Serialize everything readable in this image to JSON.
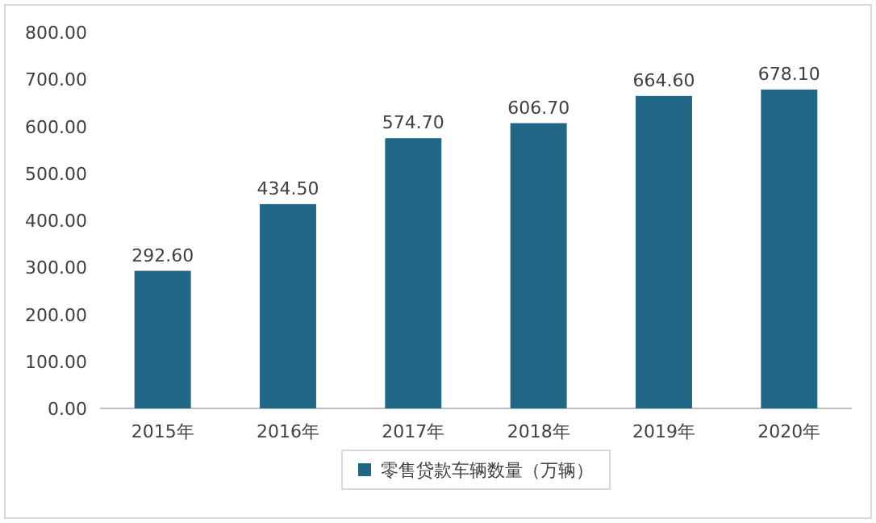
{
  "chart_data": {
    "type": "bar",
    "categories": [
      "2015年",
      "2016年",
      "2017年",
      "2018年",
      "2019年",
      "2020年"
    ],
    "series": [
      {
        "name": "零售贷款车辆数量（万辆）",
        "color": "#1f6785",
        "values": [
          292.6,
          434.5,
          574.7,
          606.7,
          664.6,
          678.1
        ],
        "value_labels": [
          "292.60",
          "434.50",
          "574.70",
          "606.70",
          "664.60",
          "678.10"
        ]
      }
    ],
    "ylim": [
      0,
      800
    ],
    "yticks": [
      {
        "value": 0,
        "label": "0.00"
      },
      {
        "value": 100,
        "label": "100.00"
      },
      {
        "value": 200,
        "label": "200.00"
      },
      {
        "value": 300,
        "label": "300.00"
      },
      {
        "value": 400,
        "label": "400.00"
      },
      {
        "value": 500,
        "label": "500.00"
      },
      {
        "value": 600,
        "label": "600.00"
      },
      {
        "value": 700,
        "label": "700.00"
      },
      {
        "value": 800,
        "label": "800.00"
      }
    ],
    "legend": "bottom"
  }
}
